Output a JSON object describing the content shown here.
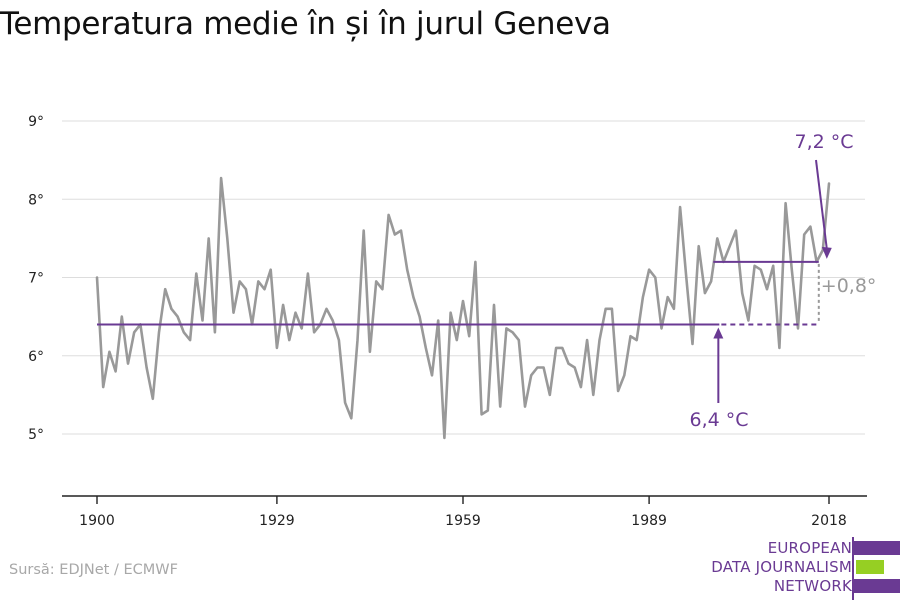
{
  "title": "Temperatura medie în și în jurul Geneva",
  "source": "Sursă: EDJNet / ECMWF",
  "logo": {
    "lines": [
      "EUROPEAN",
      "DATA JOURNALISM",
      "NETWORK"
    ]
  },
  "colors": {
    "series": "#999999",
    "accent": "#6a3a93",
    "grid": "#dddddd",
    "axis": "#222222",
    "diff": "#999999",
    "logo_green": "#96cf23"
  },
  "chart_data": {
    "type": "line",
    "title": "Temperatura medie în și în jurul Geneva",
    "xlabel": "",
    "ylabel": "",
    "xlim": [
      1900,
      2018
    ],
    "ylim": [
      4.2,
      9.2
    ],
    "grid": true,
    "x_ticks": [
      1900,
      1929,
      1959,
      1989,
      2018
    ],
    "x_tick_labels": [
      "1900",
      "1929",
      "1959",
      "1989",
      "2018"
    ],
    "y_ticks": [
      5,
      6,
      7,
      8,
      9
    ],
    "y_tick_labels": [
      "5°",
      "6°",
      "7°",
      "8°",
      "9°"
    ],
    "x": [
      1900,
      1901,
      1902,
      1903,
      1904,
      1905,
      1906,
      1907,
      1908,
      1909,
      1910,
      1911,
      1912,
      1913,
      1914,
      1915,
      1916,
      1917,
      1918,
      1919,
      1920,
      1921,
      1922,
      1923,
      1924,
      1925,
      1926,
      1927,
      1928,
      1929,
      1930,
      1931,
      1932,
      1933,
      1934,
      1935,
      1936,
      1937,
      1938,
      1939,
      1940,
      1941,
      1942,
      1943,
      1944,
      1945,
      1946,
      1947,
      1948,
      1949,
      1950,
      1951,
      1952,
      1953,
      1954,
      1955,
      1956,
      1957,
      1958,
      1959,
      1960,
      1961,
      1962,
      1963,
      1964,
      1965,
      1966,
      1967,
      1968,
      1969,
      1970,
      1971,
      1972,
      1973,
      1974,
      1975,
      1976,
      1977,
      1978,
      1979,
      1980,
      1981,
      1982,
      1983,
      1984,
      1985,
      1986,
      1987,
      1988,
      1989,
      1990,
      1991,
      1992,
      1993,
      1994,
      1995,
      1996,
      1997,
      1998,
      1999,
      2000,
      2001,
      2002,
      2003,
      2004,
      2005,
      2006,
      2007,
      2008,
      2009,
      2010,
      2011,
      2012,
      2013,
      2014,
      2015,
      2016,
      2017,
      2018
    ],
    "series": [
      {
        "values": [
          7.0,
          5.6,
          6.05,
          5.8,
          6.5,
          5.9,
          6.3,
          6.4,
          5.85,
          5.45,
          6.3,
          6.85,
          6.6,
          6.5,
          6.3,
          6.2,
          7.05,
          6.45,
          7.5,
          6.3,
          8.27,
          7.5,
          6.55,
          6.95,
          6.85,
          6.4,
          6.95,
          6.85,
          7.1,
          6.1,
          6.65,
          6.2,
          6.55,
          6.35,
          7.05,
          6.3,
          6.4,
          6.6,
          6.45,
          6.2,
          5.4,
          5.2,
          6.2,
          7.6,
          6.05,
          6.95,
          6.85,
          7.8,
          7.55,
          7.6,
          7.1,
          6.75,
          6.5,
          6.1,
          5.75,
          6.45,
          4.95,
          6.55,
          6.2,
          6.7,
          6.25,
          7.2,
          5.25,
          5.3,
          6.65,
          5.35,
          6.35,
          6.3,
          6.2,
          5.35,
          5.75,
          5.85,
          5.85,
          5.5,
          6.1,
          6.1,
          5.9,
          5.85,
          5.6,
          6.2,
          5.5,
          6.2,
          6.6,
          6.6,
          5.55,
          5.75,
          6.25,
          6.2,
          6.75,
          7.1,
          7.0,
          6.35,
          6.75,
          6.6,
          7.9,
          7.0,
          6.15,
          7.4,
          6.8,
          6.95,
          7.5,
          7.2,
          7.4,
          7.6,
          6.8,
          6.45,
          7.15,
          7.1,
          6.85,
          7.15,
          6.1,
          7.95,
          7.1,
          6.35,
          7.55,
          7.65,
          7.2,
          7.35,
          8.2
        ]
      }
    ],
    "annotations": [
      {
        "label": "6,4 °C",
        "value": 6.4,
        "x_start": 1900,
        "x_end": 2000,
        "dashed_to": 2017,
        "arrow_year": 2000
      },
      {
        "label": "7,2 °C",
        "value": 7.2,
        "x_start": 2000,
        "x_end": 2017,
        "arrow_year": 2017
      },
      {
        "label": "+0,8°",
        "x": 2017,
        "from": 6.4,
        "to": 7.2
      }
    ]
  }
}
